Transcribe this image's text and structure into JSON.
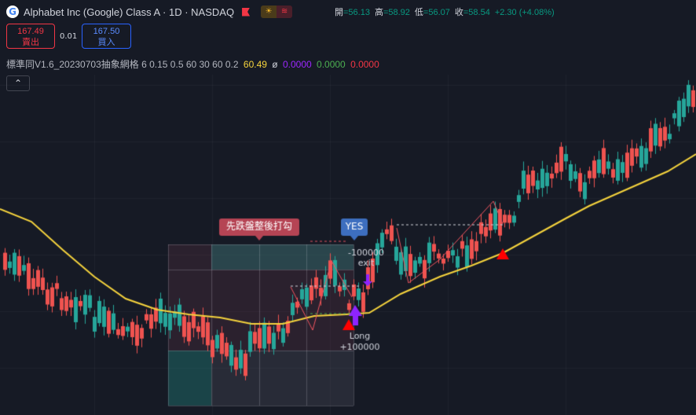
{
  "header": {
    "logo_letter": "G",
    "title": "Alphabet Inc (Google) Class A · 1D · NASDAQ",
    "market_status_icons": [
      "sun-icon",
      "wave-icon"
    ]
  },
  "ohlc": {
    "open_label": "開",
    "open": "=56.13",
    "high_label": "高",
    "high": "=58.92",
    "low_label": "低",
    "low": "=56.07",
    "close_label": "收",
    "close": "=58.54",
    "change": "+2.30 (+4.08%)"
  },
  "trade": {
    "sell_price": "167.49",
    "sell_label": "賣出",
    "spread": "0.01",
    "buy_price": "167.50",
    "buy_label": "買入"
  },
  "indicator": {
    "name": "標準同V1.6_20230703抽象網格",
    "params": "6 0.15 0.5 60 30 60 0.2",
    "value": "60.49",
    "symbol": "ø",
    "v1": "0.0000",
    "v2": "0.0000",
    "v3": "0.0000"
  },
  "collapse_icon": "chevron-up-icon",
  "annotations": {
    "tooltip_red": "先跌盤整後打勾",
    "tooltip_blue": "YES",
    "exit_amount": "-100000",
    "exit_label": "exit",
    "long_label": "Long",
    "long_amount": "+100000"
  },
  "colors": {
    "background": "#161a25",
    "up": "#26a69a",
    "down": "#ef5350",
    "ma_line": "#f5d33d",
    "zigzag": "#f05560",
    "signal": "#ff0000",
    "long_arrow": "#8e24ff",
    "tooltip_red": "#b54454",
    "tooltip_blue": "#3d6ebf"
  }
}
